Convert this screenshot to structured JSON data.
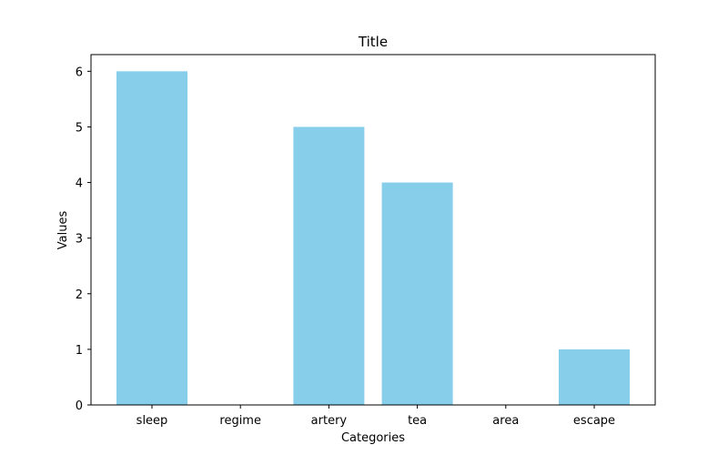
{
  "chart_data": {
    "type": "bar",
    "title": "Title",
    "xlabel": "Categories",
    "ylabel": "Values",
    "categories": [
      "sleep",
      "regime",
      "artery",
      "tea",
      "area",
      "escape"
    ],
    "values": [
      6,
      0,
      5,
      4,
      0,
      1
    ],
    "ylim": [
      0,
      6.3
    ],
    "yticks": [
      0,
      1,
      2,
      3,
      4,
      5,
      6
    ],
    "grid": false,
    "colors": {
      "bar": "#87CEEB",
      "axis": "#000000",
      "background": "#ffffff"
    }
  }
}
